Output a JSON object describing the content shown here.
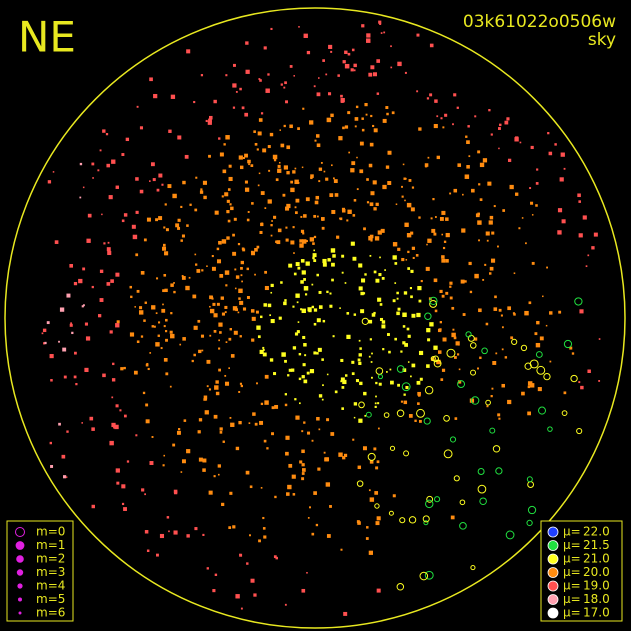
{
  "header": {
    "title": "NE",
    "frame": "03k61022o0506w",
    "mode": "sky"
  },
  "magnitude_legend": {
    "entries": [
      "m=0",
      "m=1",
      "m=2",
      "m=3",
      "m=4",
      "m=5",
      "m=6"
    ],
    "color": "#e020e0"
  },
  "brightness_legend": {
    "entries": [
      {
        "label": "22.0",
        "color": "#2040ff"
      },
      {
        "label": "21.5",
        "color": "#20e040"
      },
      {
        "label": "21.0",
        "color": "#ffff20"
      },
      {
        "label": "20.0",
        "color": "#ff8c10"
      },
      {
        "label": "19.0",
        "color": "#ff5050"
      },
      {
        "label": "18.0",
        "color": "#ffa0b0"
      },
      {
        "label": "17.0",
        "color": "#ffffff"
      }
    ],
    "symbol": "μ="
  }
}
